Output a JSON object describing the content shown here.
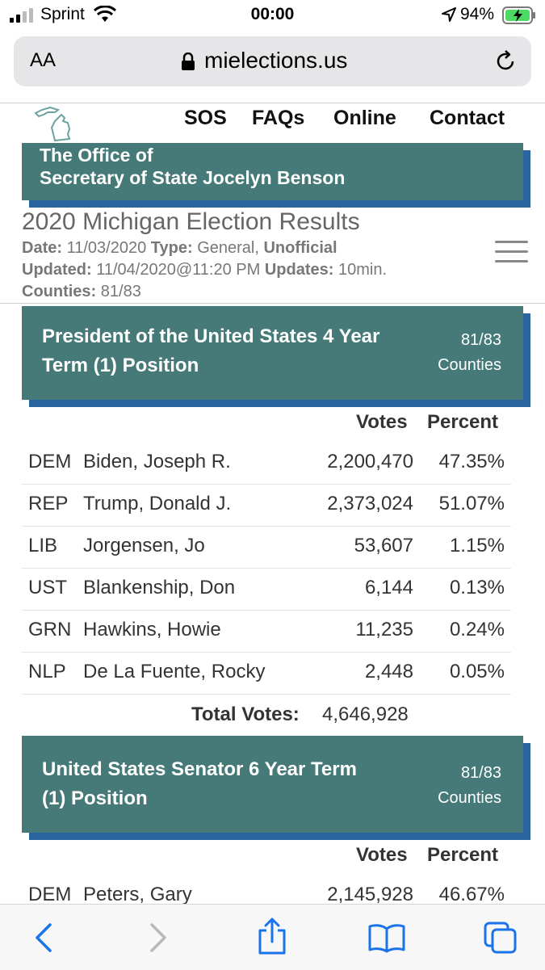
{
  "status_bar": {
    "carrier": "Sprint",
    "time": "00:00",
    "battery": "94%"
  },
  "browser": {
    "text_size": "AA",
    "domain": "mielections.us"
  },
  "nav": {
    "sos": "SOS",
    "faqs": "FAQs",
    "online": "Online",
    "contact": "Contact"
  },
  "banner": {
    "line1": "The Office of",
    "line2": "Secretary of State Jocelyn Benson"
  },
  "results": {
    "title": "2020 Michigan Election Results",
    "date_label": "Date:",
    "date": "11/03/2020",
    "type_label": "Type:",
    "type": "General,",
    "status": "Unofficial",
    "updated_label": "Updated:",
    "updated": "11/04/2020@11:20 PM",
    "updates_label": "Updates:",
    "updates": "10min.",
    "counties_label": "Counties:",
    "counties": "81/83"
  },
  "races": [
    {
      "title_line1": "President of the United States 4 Year",
      "title_line2": "Term (1) Position",
      "counties": "81/83",
      "counties_label": "Counties",
      "votes_header": "Votes",
      "percent_header": "Percent",
      "rows": [
        {
          "party": "DEM",
          "name": "Biden, Joseph R.",
          "votes": "2,200,470",
          "percent": "47.35%"
        },
        {
          "party": "REP",
          "name": "Trump, Donald J.",
          "votes": "2,373,024",
          "percent": "51.07%"
        },
        {
          "party": "LIB",
          "name": "Jorgensen, Jo",
          "votes": "53,607",
          "percent": "1.15%"
        },
        {
          "party": "UST",
          "name": "Blankenship, Don",
          "votes": "6,144",
          "percent": "0.13%"
        },
        {
          "party": "GRN",
          "name": "Hawkins, Howie",
          "votes": "11,235",
          "percent": "0.24%"
        },
        {
          "party": "NLP",
          "name": "De La Fuente, Rocky",
          "votes": "2,448",
          "percent": "0.05%"
        }
      ],
      "total_label": "Total Votes:",
      "total": "4,646,928"
    },
    {
      "title_line1": "United States Senator 6 Year Term",
      "title_line2": "(1) Position",
      "counties": "81/83",
      "counties_label": "Counties",
      "votes_header": "Votes",
      "percent_header": "Percent",
      "rows": [
        {
          "party": "DEM",
          "name": "Peters, Gary",
          "votes": "2,145,928",
          "percent": "46.67%"
        }
      ]
    }
  ],
  "toolbar": {
    "back_icon": "chevron-left-icon",
    "forward_icon": "chevron-right-icon",
    "share_icon": "share-icon",
    "bookmarks_icon": "book-icon",
    "tabs_icon": "tabs-icon"
  },
  "colors": {
    "banner": "#457a78",
    "banner_shadow": "#2b65a0",
    "link": "#1a73e8"
  }
}
